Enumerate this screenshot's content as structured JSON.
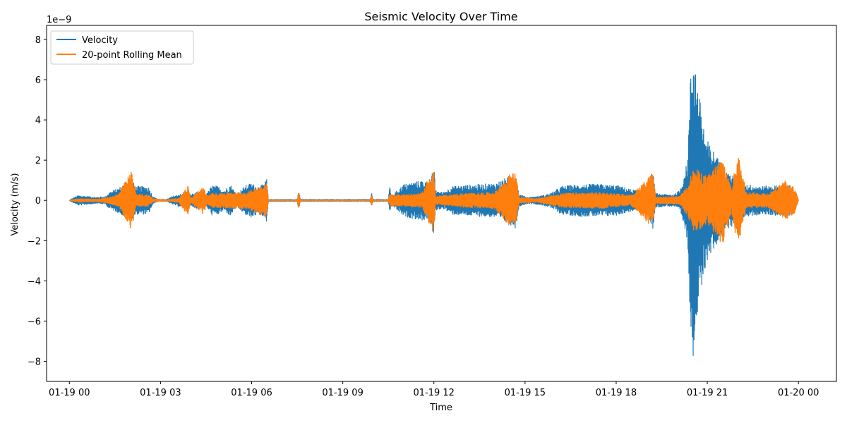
{
  "chart_data": {
    "type": "line",
    "title": "Seismic Velocity Over Time",
    "xlabel": "Time",
    "ylabel": "Velocity (m/s)",
    "y_offset_label": "1e−9",
    "x_range_hours": [
      -0.75,
      25.25
    ],
    "x_axis_origin": "01-19 00",
    "ylim": [
      -9,
      8.7
    ],
    "y_ticks": [
      -8,
      -6,
      -4,
      -2,
      0,
      2,
      4,
      6,
      8
    ],
    "x_ticks": [
      {
        "hours": 0,
        "label": "01-19 00"
      },
      {
        "hours": 3,
        "label": "01-19 03"
      },
      {
        "hours": 6,
        "label": "01-19 06"
      },
      {
        "hours": 9,
        "label": "01-19 09"
      },
      {
        "hours": 12,
        "label": "01-19 12"
      },
      {
        "hours": 15,
        "label": "01-19 15"
      },
      {
        "hours": 18,
        "label": "01-19 18"
      },
      {
        "hours": 21,
        "label": "01-19 21"
      },
      {
        "hours": 24,
        "label": "01-20 00"
      }
    ],
    "grid": false,
    "legend_position": "top-left",
    "series": [
      {
        "name": "Velocity",
        "color": "#1f77b4",
        "envelope": [
          [
            0.0,
            0.0
          ],
          [
            0.1,
            0.1
          ],
          [
            0.3,
            0.25
          ],
          [
            0.6,
            0.2
          ],
          [
            0.9,
            0.15
          ],
          [
            1.2,
            0.2
          ],
          [
            1.3,
            0.4
          ],
          [
            1.6,
            0.6
          ],
          [
            1.8,
            0.8
          ],
          [
            2.05,
            1.0
          ],
          [
            2.2,
            0.7
          ],
          [
            2.6,
            0.7
          ],
          [
            2.75,
            0.2
          ],
          [
            2.9,
            0.05
          ],
          [
            3.2,
            0.05
          ],
          [
            3.4,
            0.2
          ],
          [
            3.6,
            0.3
          ],
          [
            3.9,
            0.35
          ],
          [
            4.0,
            0.3
          ],
          [
            4.2,
            0.4
          ],
          [
            4.4,
            0.1
          ],
          [
            4.55,
            0.4
          ],
          [
            4.7,
            0.75
          ],
          [
            4.9,
            0.7
          ],
          [
            5.1,
            0.5
          ],
          [
            5.3,
            0.8
          ],
          [
            5.5,
            0.3
          ],
          [
            5.7,
            0.6
          ],
          [
            5.85,
            0.8
          ],
          [
            6.0,
            0.85
          ],
          [
            6.2,
            0.7
          ],
          [
            6.4,
            0.8
          ],
          [
            6.5,
            1.1
          ],
          [
            6.55,
            0.05
          ],
          [
            7.5,
            0.05
          ],
          [
            7.55,
            0.55
          ],
          [
            7.6,
            0.05
          ],
          [
            9.9,
            0.05
          ],
          [
            9.95,
            0.35
          ],
          [
            10.0,
            0.05
          ],
          [
            10.5,
            0.05
          ],
          [
            10.55,
            0.8
          ],
          [
            10.6,
            0.2
          ],
          [
            10.8,
            0.5
          ],
          [
            11.0,
            0.8
          ],
          [
            11.3,
            0.9
          ],
          [
            11.6,
            1.0
          ],
          [
            11.9,
            0.9
          ],
          [
            12.0,
            1.9
          ],
          [
            12.05,
            0.5
          ],
          [
            12.3,
            0.4
          ],
          [
            12.6,
            0.7
          ],
          [
            13.0,
            0.75
          ],
          [
            13.5,
            0.8
          ],
          [
            14.0,
            0.85
          ],
          [
            14.5,
            1.2
          ],
          [
            14.7,
            1.4
          ],
          [
            14.8,
            0.3
          ],
          [
            15.1,
            0.15
          ],
          [
            15.4,
            0.2
          ],
          [
            15.6,
            0.25
          ],
          [
            15.9,
            0.4
          ],
          [
            16.2,
            0.7
          ],
          [
            16.8,
            0.8
          ],
          [
            17.5,
            0.8
          ],
          [
            18.0,
            0.75
          ],
          [
            18.5,
            0.55
          ],
          [
            19.0,
            0.4
          ],
          [
            19.2,
            1.5
          ],
          [
            19.3,
            0.35
          ],
          [
            19.6,
            0.3
          ],
          [
            19.9,
            0.3
          ],
          [
            20.1,
            0.5
          ],
          [
            20.35,
            2.0
          ],
          [
            20.45,
            6.3
          ],
          [
            20.55,
            8.0
          ],
          [
            20.62,
            6.8
          ],
          [
            20.7,
            5.4
          ],
          [
            20.8,
            4.8
          ],
          [
            20.9,
            3.6
          ],
          [
            21.0,
            3.0
          ],
          [
            21.1,
            2.7
          ],
          [
            21.3,
            2.3
          ],
          [
            21.5,
            1.5
          ],
          [
            21.8,
            1.3
          ],
          [
            22.0,
            0.9
          ],
          [
            22.3,
            0.8
          ],
          [
            22.8,
            0.7
          ],
          [
            23.3,
            0.75
          ],
          [
            23.6,
            0.8
          ],
          [
            23.8,
            0.7
          ],
          [
            23.95,
            0.3
          ],
          [
            24.0,
            0.0
          ]
        ]
      },
      {
        "name": "20-point Rolling Mean",
        "color": "#ff7f0e",
        "envelope": [
          [
            0.0,
            0.0
          ],
          [
            0.3,
            0.08
          ],
          [
            0.9,
            0.06
          ],
          [
            1.3,
            0.15
          ],
          [
            1.6,
            0.3
          ],
          [
            2.05,
            1.5
          ],
          [
            2.2,
            0.3
          ],
          [
            2.6,
            0.3
          ],
          [
            2.75,
            0.08
          ],
          [
            3.2,
            0.03
          ],
          [
            3.6,
            0.1
          ],
          [
            3.9,
            0.75
          ],
          [
            4.0,
            0.1
          ],
          [
            4.4,
            0.7
          ],
          [
            4.55,
            0.2
          ],
          [
            4.7,
            0.35
          ],
          [
            5.3,
            0.4
          ],
          [
            5.85,
            0.4
          ],
          [
            6.5,
            0.9
          ],
          [
            6.55,
            0.02
          ],
          [
            7.5,
            0.02
          ],
          [
            7.55,
            0.5
          ],
          [
            7.6,
            0.02
          ],
          [
            9.9,
            0.02
          ],
          [
            9.95,
            0.3
          ],
          [
            10.0,
            0.02
          ],
          [
            10.5,
            0.02
          ],
          [
            10.55,
            0.3
          ],
          [
            11.0,
            0.3
          ],
          [
            11.6,
            0.35
          ],
          [
            12.0,
            1.7
          ],
          [
            12.05,
            0.2
          ],
          [
            13.0,
            0.35
          ],
          [
            14.0,
            0.4
          ],
          [
            14.5,
            1.3
          ],
          [
            14.7,
            1.4
          ],
          [
            14.8,
            0.15
          ],
          [
            15.4,
            0.08
          ],
          [
            16.2,
            0.35
          ],
          [
            17.5,
            0.4
          ],
          [
            18.5,
            0.25
          ],
          [
            19.2,
            1.4
          ],
          [
            19.3,
            0.15
          ],
          [
            20.1,
            0.2
          ],
          [
            20.35,
            0.8
          ],
          [
            20.55,
            1.6
          ],
          [
            20.7,
            1.5
          ],
          [
            21.0,
            1.2
          ],
          [
            21.5,
            2.2
          ],
          [
            21.8,
            0.6
          ],
          [
            22.0,
            2.4
          ],
          [
            22.3,
            0.4
          ],
          [
            23.0,
            0.35
          ],
          [
            23.6,
            1.0
          ],
          [
            23.9,
            0.6
          ],
          [
            24.0,
            0.0
          ]
        ]
      }
    ]
  }
}
